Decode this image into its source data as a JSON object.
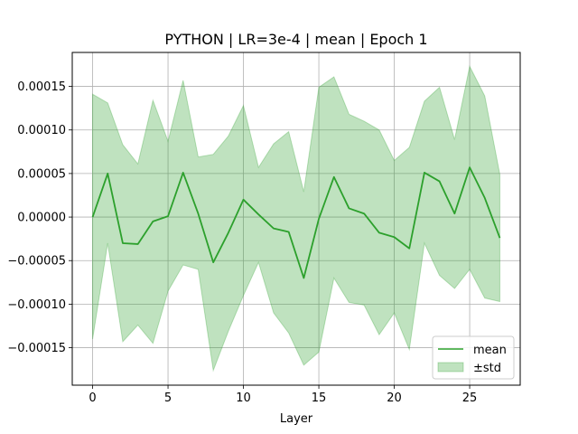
{
  "chart_data": {
    "type": "line",
    "title": "PYTHON | LR=3e-4 | mean | Epoch 1",
    "xlabel": "Layer",
    "ylabel": "",
    "xlim": [
      -1.35,
      28.35
    ],
    "ylim": [
      -0.000193,
      0.000189
    ],
    "xticks": [
      0,
      5,
      10,
      15,
      20,
      25
    ],
    "xtick_labels": [
      "0",
      "5",
      "10",
      "15",
      "20",
      "25"
    ],
    "yticks": [
      -0.00015,
      -0.0001,
      -5e-05,
      0.0,
      5e-05,
      0.0001,
      0.00015
    ],
    "ytick_labels": [
      "−0.00015",
      "−0.00010",
      "−0.00005",
      "0.00000",
      "0.00005",
      "0.00010",
      "0.00015"
    ],
    "grid": true,
    "legend_position": "lower-right",
    "x": [
      0,
      1,
      2,
      3,
      4,
      5,
      6,
      7,
      8,
      9,
      10,
      11,
      12,
      13,
      14,
      15,
      16,
      17,
      18,
      19,
      20,
      21,
      22,
      23,
      24,
      25,
      26,
      27
    ],
    "series": [
      {
        "name": "mean",
        "color": "#2ca02c",
        "values": [
          0.0,
          5e-05,
          -3e-05,
          -3.1e-05,
          -5e-06,
          1e-06,
          5.1e-05,
          4e-06,
          -5.2e-05,
          -1.8e-05,
          2e-05,
          3e-06,
          -1.3e-05,
          -1.7e-05,
          -7e-05,
          -2e-06,
          4.6e-05,
          1e-05,
          4e-06,
          -1.8e-05,
          -2.3e-05,
          -3.6e-05,
          5.1e-05,
          4.1e-05,
          4e-06,
          5.7e-05,
          2.2e-05,
          -2.4e-05
        ]
      }
    ],
    "band": {
      "name": "±std",
      "color": "#2ca02c",
      "lower": [
        -0.00014,
        -3e-05,
        -0.000143,
        -0.000124,
        -0.000145,
        -8.5e-05,
        -5.5e-05,
        -6e-05,
        -0.000176,
        -0.000131,
        -9e-05,
        -5.2e-05,
        -0.00011,
        -0.000133,
        -0.00017,
        -0.000155,
        -7e-05,
        -9.8e-05,
        -0.000101,
        -0.000135,
        -0.00011,
        -0.000152,
        -3e-05,
        -6.7e-05,
        -8.2e-05,
        -6e-05,
        -9.3e-05,
        -9.7e-05
      ],
      "upper": [
        0.000141,
        0.000131,
        8.3e-05,
        6.1e-05,
        0.000134,
        8.7e-05,
        0.000157,
        6.9e-05,
        7.2e-05,
        9.3e-05,
        0.000128,
        5.7e-05,
        8.4e-05,
        9.8e-05,
        2.9e-05,
        0.000149,
        0.000161,
        0.000118,
        0.00011,
        0.0001,
        6.5e-05,
        8e-05,
        0.000133,
        0.000149,
        8.9e-05,
        0.000173,
        0.000139,
        4.9e-05
      ]
    }
  }
}
